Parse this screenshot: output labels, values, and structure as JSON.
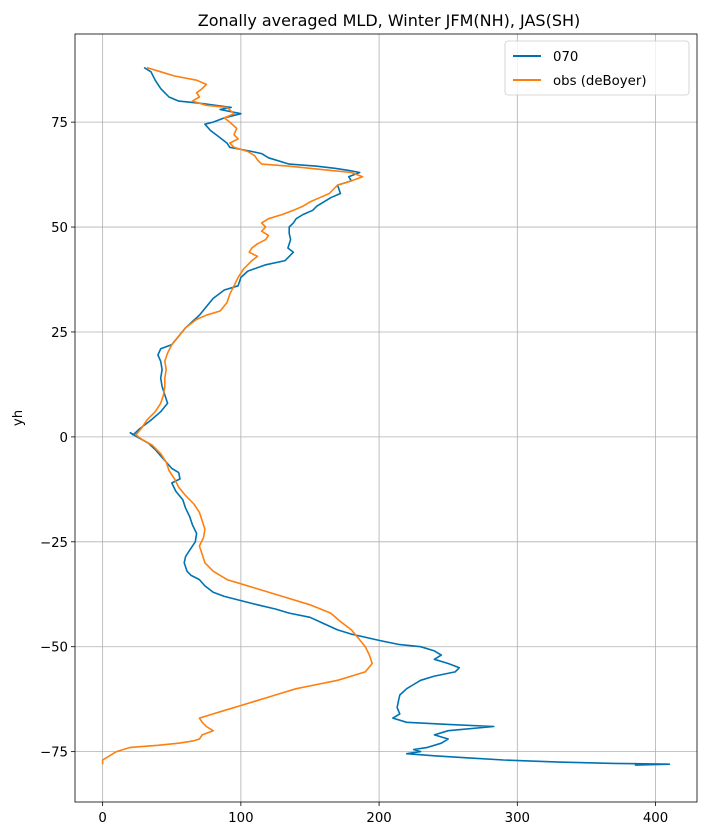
{
  "chart_data": {
    "type": "line",
    "title": "Zonally averaged MLD, Winter JFM(NH), JAS(SH)",
    "xlabel": "",
    "ylabel": "yh",
    "xlim": [
      -20,
      430
    ],
    "ylim": [
      -87,
      96
    ],
    "xticks": [
      0,
      100,
      200,
      300,
      400
    ],
    "yticks": [
      -75,
      -50,
      -25,
      0,
      25,
      50,
      75
    ],
    "xtick_labels": [
      "0",
      "100",
      "200",
      "300",
      "400"
    ],
    "ytick_labels": [
      "−75",
      "−50",
      "−25",
      "0",
      "25",
      "50",
      "75"
    ],
    "grid": true,
    "legend_position": "top-right",
    "series": [
      {
        "name": "070",
        "color": "#0072b2",
        "points": [
          [
            30,
            88
          ],
          [
            35,
            87
          ],
          [
            38,
            85
          ],
          [
            42,
            83
          ],
          [
            48,
            81
          ],
          [
            55,
            80
          ],
          [
            70,
            79.5
          ],
          [
            93,
            78.5
          ],
          [
            85,
            78
          ],
          [
            100,
            77
          ],
          [
            88,
            76
          ],
          [
            80,
            75
          ],
          [
            74,
            74.5
          ],
          [
            78,
            73
          ],
          [
            84,
            71.5
          ],
          [
            90,
            70
          ],
          [
            92,
            69
          ],
          [
            100,
            68.5
          ],
          [
            108,
            68
          ],
          [
            115,
            67.5
          ],
          [
            120,
            66.5
          ],
          [
            135,
            65
          ],
          [
            155,
            64.5
          ],
          [
            168,
            64
          ],
          [
            178,
            63.5
          ],
          [
            186,
            63
          ],
          [
            178,
            62
          ],
          [
            180,
            61
          ],
          [
            170,
            60
          ],
          [
            172,
            58
          ],
          [
            165,
            57
          ],
          [
            160,
            56
          ],
          [
            155,
            55
          ],
          [
            152,
            54
          ],
          [
            145,
            53
          ],
          [
            140,
            52
          ],
          [
            138,
            51
          ],
          [
            135,
            50
          ],
          [
            135,
            48.5
          ],
          [
            136,
            47
          ],
          [
            134,
            45
          ],
          [
            138,
            44
          ],
          [
            132,
            42
          ],
          [
            118,
            41
          ],
          [
            105,
            39.5
          ],
          [
            100,
            38
          ],
          [
            98,
            36
          ],
          [
            88,
            35
          ],
          [
            80,
            33
          ],
          [
            75,
            31
          ],
          [
            70,
            29
          ],
          [
            65,
            27.5
          ],
          [
            60,
            26
          ],
          [
            55,
            24
          ],
          [
            50,
            22
          ],
          [
            42,
            21
          ],
          [
            40,
            19.5
          ],
          [
            42,
            18
          ],
          [
            43,
            16
          ],
          [
            42,
            14
          ],
          [
            43,
            12
          ],
          [
            45,
            10
          ],
          [
            47,
            8
          ],
          [
            42,
            6
          ],
          [
            35,
            4
          ],
          [
            27,
            2
          ],
          [
            22,
            0.5
          ],
          [
            20,
            1
          ],
          [
            25,
            0
          ],
          [
            33,
            -1.5
          ],
          [
            38,
            -3
          ],
          [
            42,
            -4.5
          ],
          [
            46,
            -6
          ],
          [
            50,
            -7.5
          ],
          [
            55,
            -8.5
          ],
          [
            56,
            -10
          ],
          [
            50,
            -11
          ],
          [
            53,
            -13
          ],
          [
            58,
            -15
          ],
          [
            60,
            -17
          ],
          [
            63,
            -19
          ],
          [
            65,
            -21
          ],
          [
            68,
            -23
          ],
          [
            67,
            -25
          ],
          [
            63,
            -27
          ],
          [
            60,
            -28.5
          ],
          [
            59,
            -30
          ],
          [
            61,
            -32
          ],
          [
            64,
            -33
          ],
          [
            70,
            -34
          ],
          [
            74,
            -35.5
          ],
          [
            80,
            -37
          ],
          [
            88,
            -38
          ],
          [
            100,
            -39
          ],
          [
            112,
            -40
          ],
          [
            125,
            -41
          ],
          [
            135,
            -42
          ],
          [
            150,
            -43
          ],
          [
            160,
            -44.5
          ],
          [
            170,
            -46
          ],
          [
            180,
            -47
          ],
          [
            200,
            -48.5
          ],
          [
            215,
            -49.5
          ],
          [
            230,
            -50
          ],
          [
            240,
            -51
          ],
          [
            245,
            -52
          ],
          [
            240,
            -53
          ],
          [
            250,
            -54
          ],
          [
            258,
            -55
          ],
          [
            255,
            -56
          ],
          [
            240,
            -57
          ],
          [
            230,
            -58
          ],
          [
            225,
            -59
          ],
          [
            220,
            -60
          ],
          [
            215,
            -61.5
          ],
          [
            214,
            -63
          ],
          [
            213,
            -64.5
          ],
          [
            215,
            -66
          ],
          [
            210,
            -67
          ],
          [
            220,
            -68
          ],
          [
            250,
            -68.5
          ],
          [
            283,
            -69
          ],
          [
            250,
            -70
          ],
          [
            240,
            -71
          ],
          [
            250,
            -72
          ],
          [
            245,
            -73
          ],
          [
            235,
            -74
          ],
          [
            225,
            -74.5
          ],
          [
            230,
            -75
          ],
          [
            220,
            -75.5
          ],
          [
            240,
            -76
          ],
          [
            265,
            -76.5
          ],
          [
            290,
            -77
          ],
          [
            330,
            -77.5
          ],
          [
            370,
            -77.8
          ],
          [
            410,
            -78
          ],
          [
            385,
            -78.2
          ]
        ]
      },
      {
        "name": "obs (deBoyer)",
        "color": "#ff7f0e",
        "points": [
          [
            32,
            88
          ],
          [
            42,
            87
          ],
          [
            52,
            86
          ],
          [
            68,
            85
          ],
          [
            75,
            84
          ],
          [
            72,
            83
          ],
          [
            68,
            82
          ],
          [
            70,
            81
          ],
          [
            65,
            80
          ],
          [
            75,
            79
          ],
          [
            90,
            78.5
          ],
          [
            95,
            77
          ],
          [
            88,
            76
          ],
          [
            92,
            75
          ],
          [
            97,
            73.5
          ],
          [
            95,
            72
          ],
          [
            98,
            71
          ],
          [
            92,
            70
          ],
          [
            95,
            69
          ],
          [
            105,
            68
          ],
          [
            110,
            67
          ],
          [
            112,
            66
          ],
          [
            115,
            65
          ],
          [
            135,
            64.5
          ],
          [
            150,
            64
          ],
          [
            165,
            63.5
          ],
          [
            180,
            63
          ],
          [
            188,
            62
          ],
          [
            180,
            61
          ],
          [
            170,
            60
          ],
          [
            164,
            58
          ],
          [
            157,
            57
          ],
          [
            150,
            56
          ],
          [
            145,
            55
          ],
          [
            138,
            54
          ],
          [
            130,
            53
          ],
          [
            120,
            52
          ],
          [
            115,
            51
          ],
          [
            118,
            50
          ],
          [
            115,
            49
          ],
          [
            120,
            48
          ],
          [
            118,
            47
          ],
          [
            112,
            46
          ],
          [
            108,
            45
          ],
          [
            106,
            44
          ],
          [
            112,
            43
          ],
          [
            108,
            42
          ],
          [
            102,
            40
          ],
          [
            98,
            38
          ],
          [
            95,
            36
          ],
          [
            92,
            34
          ],
          [
            90,
            32
          ],
          [
            85,
            30
          ],
          [
            75,
            29
          ],
          [
            68,
            28
          ],
          [
            60,
            26
          ],
          [
            55,
            24
          ],
          [
            50,
            22
          ],
          [
            47,
            20
          ],
          [
            45,
            18
          ],
          [
            46,
            16
          ],
          [
            45,
            14
          ],
          [
            45,
            12
          ],
          [
            44,
            10
          ],
          [
            42,
            8
          ],
          [
            38,
            6
          ],
          [
            32,
            4
          ],
          [
            28,
            2
          ],
          [
            24,
            0.5
          ],
          [
            28,
            -0.5
          ],
          [
            36,
            -2
          ],
          [
            42,
            -4
          ],
          [
            46,
            -6
          ],
          [
            48,
            -8
          ],
          [
            52,
            -10
          ],
          [
            55,
            -12
          ],
          [
            60,
            -14
          ],
          [
            66,
            -16
          ],
          [
            70,
            -18
          ],
          [
            72,
            -20
          ],
          [
            74,
            -22
          ],
          [
            73,
            -24
          ],
          [
            70,
            -26
          ],
          [
            72,
            -28
          ],
          [
            74,
            -30
          ],
          [
            80,
            -32
          ],
          [
            90,
            -34
          ],
          [
            100,
            -35
          ],
          [
            110,
            -36
          ],
          [
            130,
            -38
          ],
          [
            150,
            -40
          ],
          [
            165,
            -42
          ],
          [
            172,
            -44
          ],
          [
            180,
            -46
          ],
          [
            185,
            -48
          ],
          [
            190,
            -50
          ],
          [
            193,
            -52
          ],
          [
            195,
            -54
          ],
          [
            190,
            -56
          ],
          [
            180,
            -57
          ],
          [
            170,
            -58
          ],
          [
            155,
            -59
          ],
          [
            140,
            -60
          ],
          [
            130,
            -61
          ],
          [
            120,
            -62
          ],
          [
            110,
            -63
          ],
          [
            100,
            -64
          ],
          [
            90,
            -65
          ],
          [
            80,
            -66
          ],
          [
            70,
            -67
          ],
          [
            72,
            -68
          ],
          [
            75,
            -69
          ],
          [
            80,
            -70
          ],
          [
            72,
            -71
          ],
          [
            70,
            -72
          ],
          [
            65,
            -72.5
          ],
          [
            55,
            -73
          ],
          [
            40,
            -73.5
          ],
          [
            20,
            -74
          ],
          [
            10,
            -75
          ],
          [
            5,
            -76
          ],
          [
            0,
            -77
          ],
          [
            0,
            -78
          ]
        ]
      }
    ]
  }
}
